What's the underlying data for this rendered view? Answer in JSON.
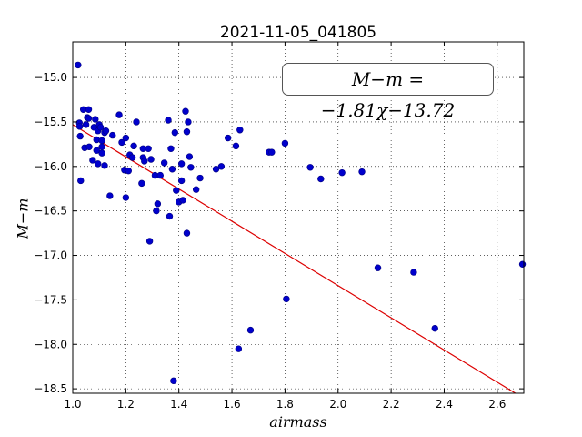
{
  "chart_data": {
    "type": "scatter",
    "title": "2021-11-05_041805",
    "annotation": "M−m = −1.81χ−13.72",
    "xlabel": "airmass",
    "ylabel": "M−m",
    "xlim": [
      1.0,
      2.7
    ],
    "ylim": [
      -18.55,
      -14.6
    ],
    "xticks": [
      "1.0",
      "1.2",
      "1.4",
      "1.6",
      "1.8",
      "2.0",
      "2.2",
      "2.4",
      "2.6"
    ],
    "yticks": [
      "−15.0",
      "−15.5",
      "−16.0",
      "−16.5",
      "−17.0",
      "−17.5",
      "−18.0",
      "−18.5"
    ],
    "grid": true,
    "colors": {
      "points": "#0000cc",
      "points_edge": "#000080",
      "fit_line": "#dd0000"
    },
    "fit": {
      "slope": -1.81,
      "intercept": -13.72
    },
    "points": [
      [
        1.02,
        -14.86
      ],
      [
        1.025,
        -15.51
      ],
      [
        1.026,
        -15.55
      ],
      [
        1.028,
        -15.66
      ],
      [
        1.03,
        -16.16
      ],
      [
        1.04,
        -15.36
      ],
      [
        1.045,
        -15.79
      ],
      [
        1.05,
        -15.53
      ],
      [
        1.055,
        -15.45
      ],
      [
        1.06,
        -15.36
      ],
      [
        1.06,
        -15.46
      ],
      [
        1.062,
        -15.78
      ],
      [
        1.075,
        -15.93
      ],
      [
        1.08,
        -15.56
      ],
      [
        1.085,
        -15.47
      ],
      [
        1.09,
        -15.7
      ],
      [
        1.09,
        -15.82
      ],
      [
        1.095,
        -15.6
      ],
      [
        1.095,
        -15.97
      ],
      [
        1.1,
        -15.53
      ],
      [
        1.105,
        -15.56
      ],
      [
        1.11,
        -15.71
      ],
      [
        1.11,
        -15.78
      ],
      [
        1.11,
        -15.85
      ],
      [
        1.12,
        -15.62
      ],
      [
        1.12,
        -15.99
      ],
      [
        1.125,
        -15.6
      ],
      [
        1.14,
        -16.33
      ],
      [
        1.15,
        -15.65
      ],
      [
        1.175,
        -15.42
      ],
      [
        1.185,
        -15.73
      ],
      [
        1.195,
        -16.04
      ],
      [
        1.2,
        -15.68
      ],
      [
        1.2,
        -16.35
      ],
      [
        1.21,
        -16.05
      ],
      [
        1.215,
        -15.87
      ],
      [
        1.225,
        -15.9
      ],
      [
        1.23,
        -15.77
      ],
      [
        1.24,
        -15.5
      ],
      [
        1.26,
        -16.19
      ],
      [
        1.265,
        -15.8
      ],
      [
        1.265,
        -15.9
      ],
      [
        1.27,
        -15.94
      ],
      [
        1.285,
        -15.8
      ],
      [
        1.29,
        -16.84
      ],
      [
        1.295,
        -15.92
      ],
      [
        1.31,
        -16.1
      ],
      [
        1.315,
        -16.5
      ],
      [
        1.32,
        -16.42
      ],
      [
        1.33,
        -16.1
      ],
      [
        1.345,
        -15.96
      ],
      [
        1.36,
        -15.48
      ],
      [
        1.365,
        -16.56
      ],
      [
        1.37,
        -15.8
      ],
      [
        1.375,
        -16.03
      ],
      [
        1.38,
        -18.41
      ],
      [
        1.385,
        -15.62
      ],
      [
        1.39,
        -16.27
      ],
      [
        1.4,
        -16.4
      ],
      [
        1.41,
        -15.97
      ],
      [
        1.41,
        -16.16
      ],
      [
        1.415,
        -16.38
      ],
      [
        1.425,
        -15.38
      ],
      [
        1.43,
        -15.61
      ],
      [
        1.43,
        -16.75
      ],
      [
        1.435,
        -15.5
      ],
      [
        1.44,
        -15.89
      ],
      [
        1.445,
        -16.01
      ],
      [
        1.465,
        -16.26
      ],
      [
        1.48,
        -16.13
      ],
      [
        1.54,
        -16.03
      ],
      [
        1.56,
        -16.0
      ],
      [
        1.585,
        -15.68
      ],
      [
        1.615,
        -15.77
      ],
      [
        1.625,
        -18.05
      ],
      [
        1.63,
        -15.59
      ],
      [
        1.67,
        -17.84
      ],
      [
        1.74,
        -15.84
      ],
      [
        1.75,
        -15.84
      ],
      [
        1.8,
        -15.74
      ],
      [
        1.805,
        -17.49
      ],
      [
        1.895,
        -16.01
      ],
      [
        1.935,
        -16.14
      ],
      [
        2.015,
        -16.07
      ],
      [
        2.09,
        -16.06
      ],
      [
        2.15,
        -17.14
      ],
      [
        2.285,
        -17.19
      ],
      [
        2.365,
        -17.82
      ],
      [
        2.695,
        -17.1
      ]
    ]
  }
}
